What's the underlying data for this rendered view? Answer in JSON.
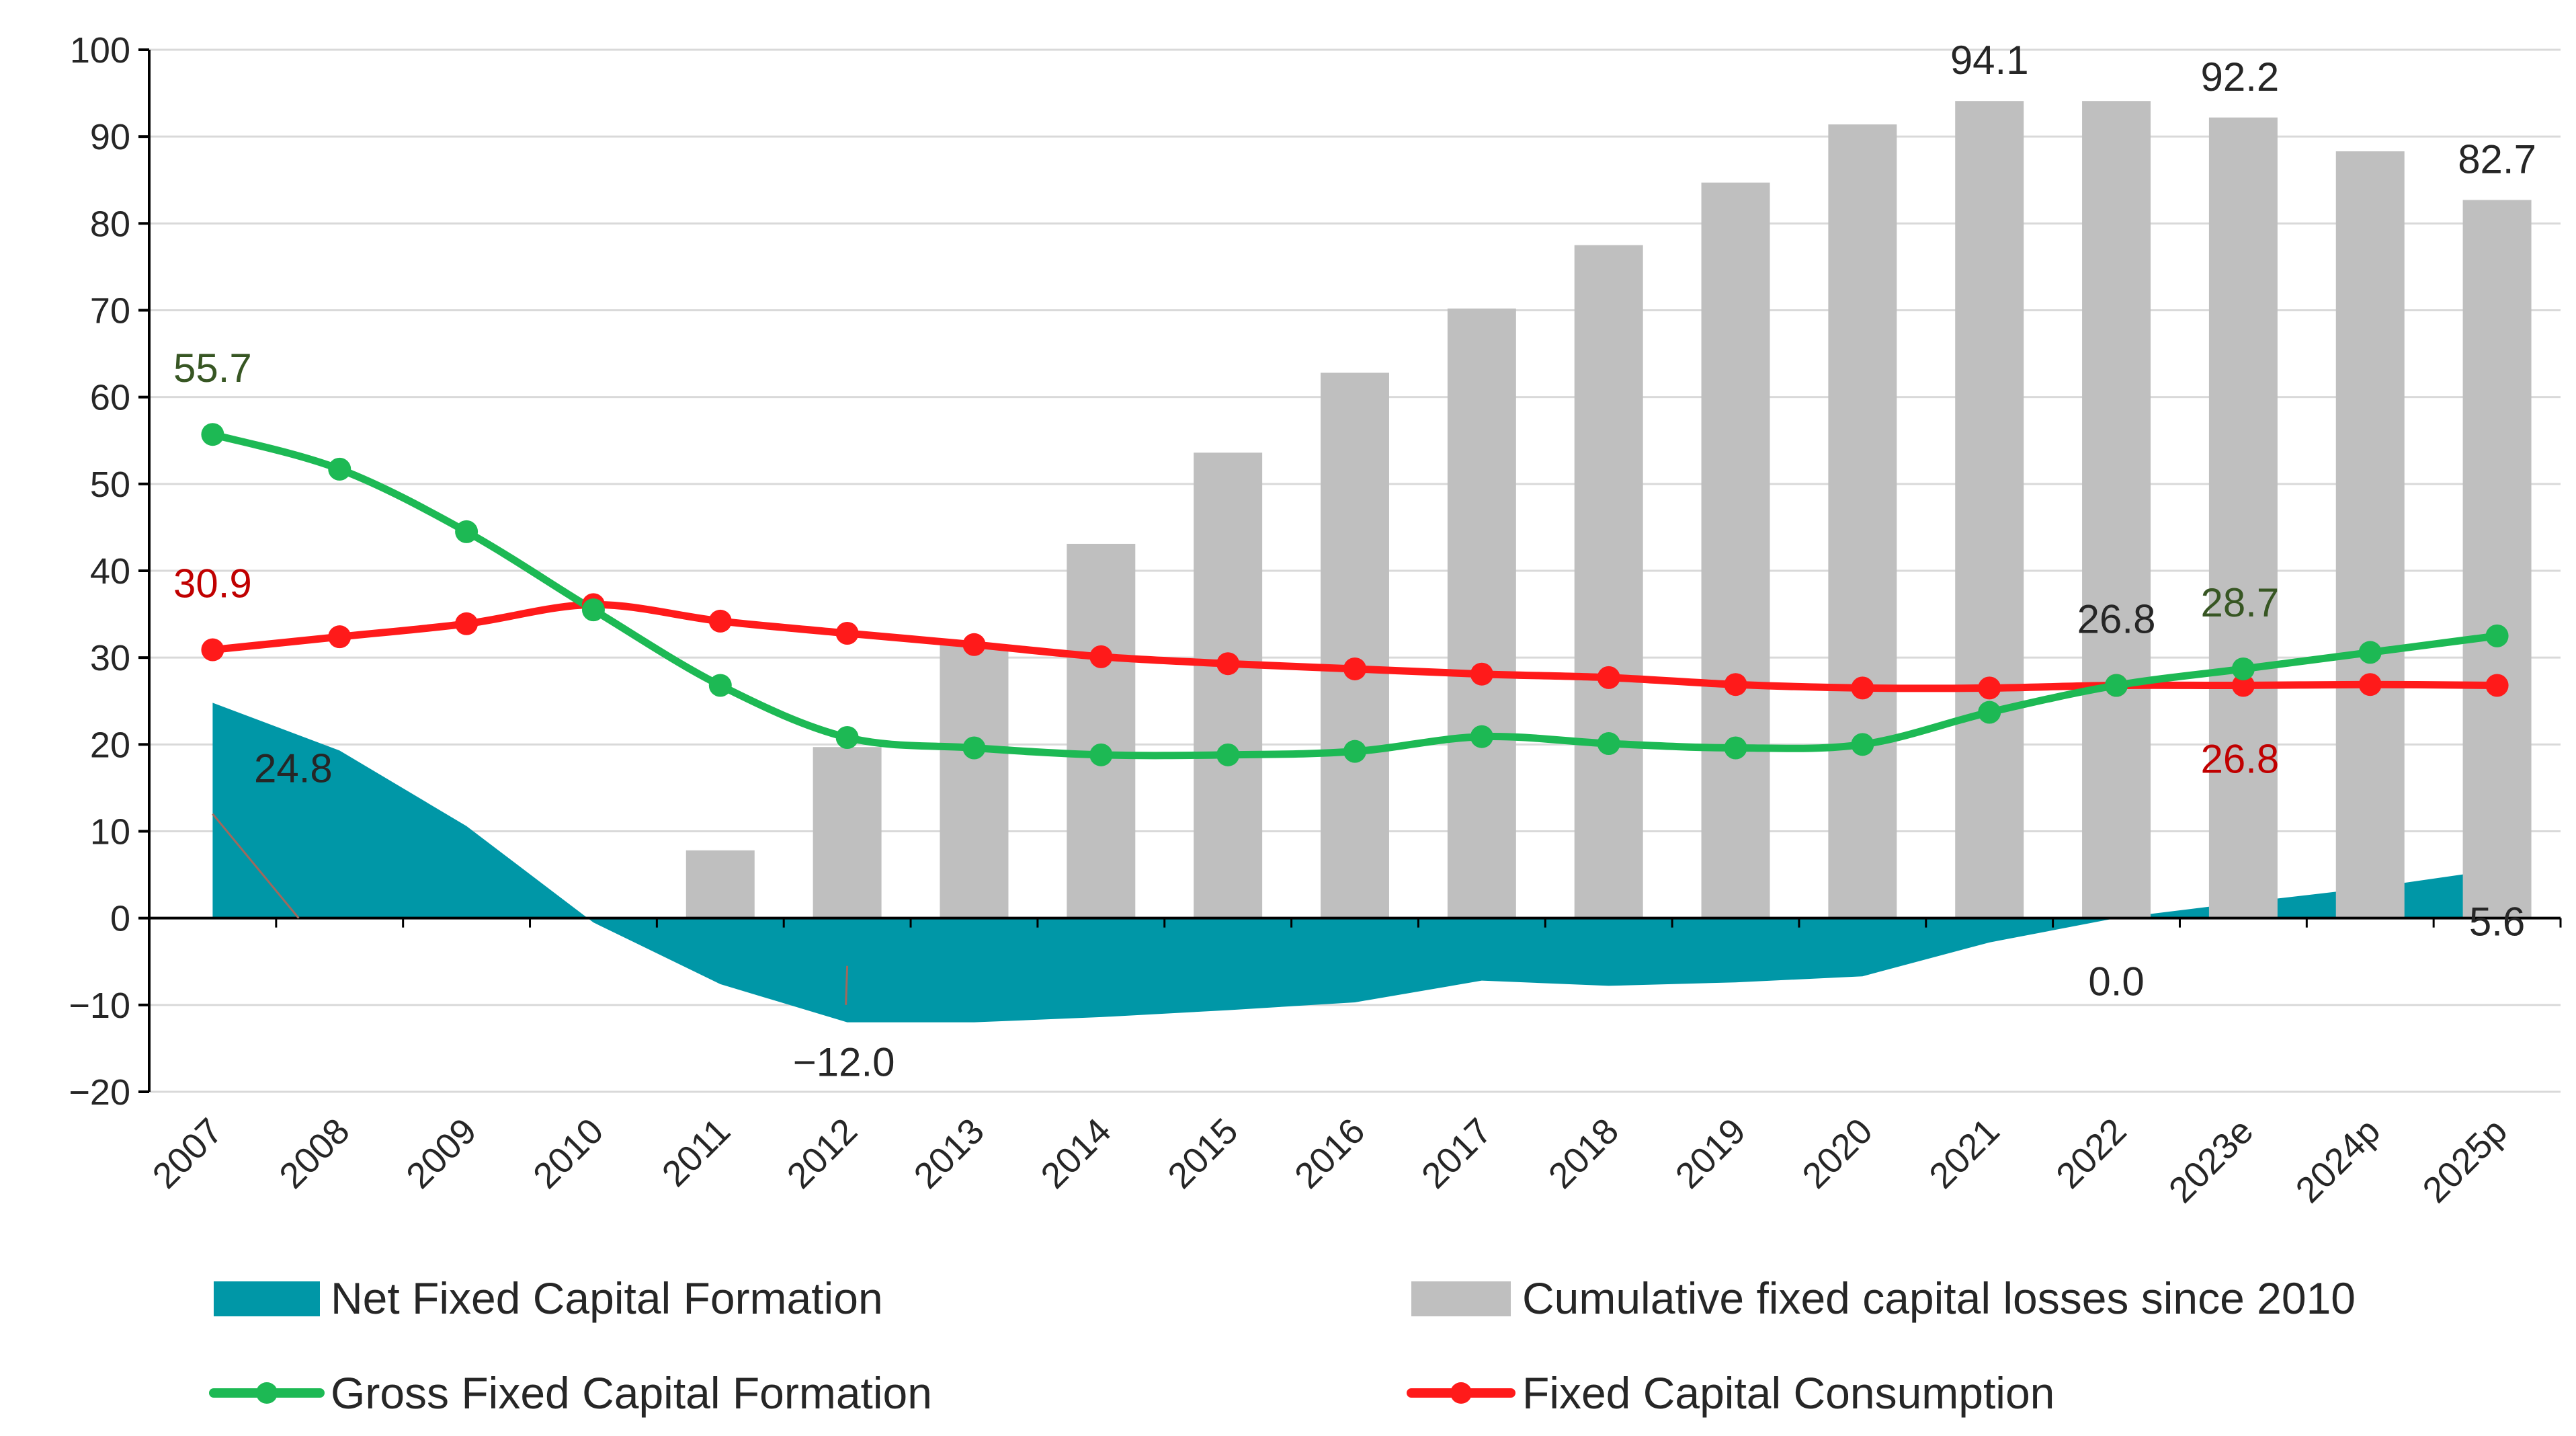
{
  "chart_data": {
    "type": "combo",
    "categories": [
      "2007",
      "2008",
      "2009",
      "2010",
      "2011",
      "2012",
      "2013",
      "2014",
      "2015",
      "2016",
      "2017",
      "2018",
      "2019",
      "2020",
      "2021",
      "2022",
      "2023e",
      "2024p",
      "2025p"
    ],
    "ylim": [
      -20,
      100
    ],
    "yticks": [
      "−20",
      "−10",
      "0",
      "10",
      "20",
      "30",
      "40",
      "50",
      "60",
      "70",
      "80",
      "90",
      "100"
    ],
    "ytick_values": [
      -20,
      -10,
      0,
      10,
      20,
      30,
      40,
      50,
      60,
      70,
      80,
      90,
      100
    ],
    "grid": true,
    "legend_position": "bottom",
    "series": [
      {
        "name": "Net Fixed Capital Formation",
        "kind": "area",
        "color": "#0097A7",
        "values": [
          24.8,
          19.3,
          10.6,
          -0.5,
          -7.6,
          -12.0,
          -12.0,
          -11.4,
          -10.6,
          -9.7,
          -7.2,
          -7.8,
          -7.4,
          -6.7,
          -2.8,
          0.0,
          1.8,
          3.5,
          5.6
        ]
      },
      {
        "name": "Cumulative fixed capital losses since 2010",
        "kind": "bar",
        "color": "#BFBFBF",
        "values": [
          null,
          null,
          null,
          null,
          7.8,
          19.7,
          31.5,
          43.1,
          53.6,
          62.8,
          70.2,
          77.5,
          84.7,
          91.4,
          94.1,
          94.1,
          92.2,
          88.3,
          82.7
        ]
      },
      {
        "name": "Gross Fixed Capital Formation",
        "kind": "line",
        "color": "#1DB954",
        "values": [
          55.7,
          51.7,
          44.5,
          35.5,
          26.8,
          20.8,
          19.6,
          18.8,
          18.8,
          19.2,
          20.9,
          20.1,
          19.6,
          20.0,
          23.7,
          26.8,
          28.7,
          30.6,
          32.5
        ]
      },
      {
        "name": "Fixed Capital Consumption",
        "kind": "line",
        "color": "#FF1A1A",
        "values": [
          30.9,
          32.4,
          33.9,
          36.1,
          34.2,
          32.8,
          31.5,
          30.1,
          29.3,
          28.7,
          28.1,
          27.7,
          26.9,
          26.5,
          26.5,
          26.8,
          26.8,
          26.9,
          26.8
        ]
      }
    ],
    "annotations": [
      {
        "text": "55.7",
        "series": "Gross Fixed Capital Formation",
        "index": 0,
        "color": "#375623"
      },
      {
        "text": "30.9",
        "series": "Fixed Capital Consumption",
        "index": 0,
        "color": "#C00000"
      },
      {
        "text": "24.8",
        "series": "Net Fixed Capital Formation",
        "index": 0,
        "color": "#262626"
      },
      {
        "text": "−12.0",
        "series": "Net Fixed Capital Formation",
        "index": 5,
        "color": "#262626"
      },
      {
        "text": "94.1",
        "series": "Cumulative fixed capital losses since 2010",
        "index": 14,
        "color": "#262626"
      },
      {
        "text": "92.2",
        "series": "Cumulative fixed capital losses since 2010",
        "index": 16,
        "color": "#262626"
      },
      {
        "text": "82.7",
        "series": "Cumulative fixed capital losses since 2010",
        "index": 18,
        "color": "#262626"
      },
      {
        "text": "26.8",
        "series": "Gross Fixed Capital Formation",
        "index": 15,
        "color": "#262626"
      },
      {
        "text": "28.7",
        "series": "Gross Fixed Capital Formation",
        "index": 16,
        "color": "#375623"
      },
      {
        "text": "26.8",
        "series": "Fixed Capital Consumption",
        "index": 16,
        "color": "#C00000"
      },
      {
        "text": "0.0",
        "series": "Net Fixed Capital Formation",
        "index": 15,
        "color": "#262626"
      },
      {
        "text": "5.6",
        "series": "Net Fixed Capital Formation",
        "index": 18,
        "color": "#262626"
      }
    ]
  },
  "legend": {
    "net_label": "Net Fixed Capital Formation",
    "cumulative_label": "Cumulative fixed capital losses since 2010",
    "gross_label": "Gross Fixed Capital Formation",
    "consumption_label": "Fixed Capital Consumption"
  }
}
